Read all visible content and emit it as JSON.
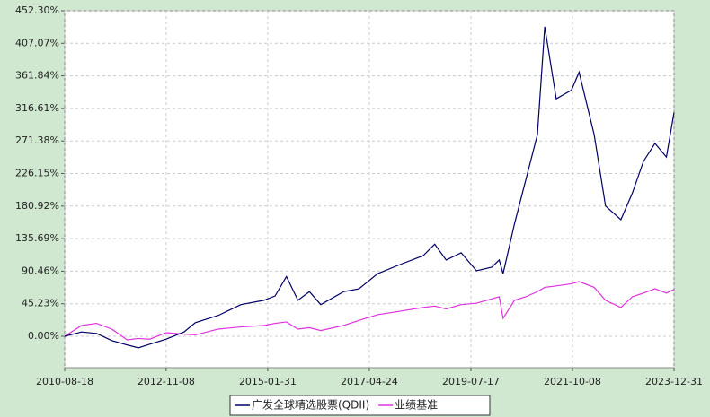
{
  "chart_data": {
    "type": "line",
    "x": [
      "2010-08-18",
      "2010-12-31",
      "2011-04-30",
      "2011-08-31",
      "2011-12-31",
      "2012-03-31",
      "2012-06-30",
      "2012-11-08",
      "2013-03-31",
      "2013-06-30",
      "2013-12-31",
      "2014-06-30",
      "2014-12-31",
      "2015-03-31",
      "2015-06-30",
      "2015-09-30",
      "2015-12-31",
      "2016-03-31",
      "2016-09-30",
      "2017-01-31",
      "2017-06-30",
      "2017-12-31",
      "2018-06-30",
      "2018-09-30",
      "2018-12-31",
      "2019-04-30",
      "2019-08-31",
      "2019-12-31",
      "2020-02-29",
      "2020-03-31",
      "2020-06-30",
      "2020-09-30",
      "2020-12-31",
      "2021-02-28",
      "2021-05-31",
      "2021-09-30",
      "2021-11-30",
      "2022-03-31",
      "2022-06-30",
      "2022-10-31",
      "2023-01-31",
      "2023-04-30",
      "2023-07-31",
      "2023-10-31",
      "2023-12-31"
    ],
    "series": [
      {
        "name": "广发全球精选股票(QDII)",
        "color": "#000066",
        "values": [
          0,
          6,
          4,
          -6,
          -12,
          -16,
          -11,
          -4,
          6,
          19,
          29,
          44,
          50,
          56,
          83,
          50,
          62,
          44,
          62,
          66,
          87,
          100,
          112,
          128,
          106,
          116,
          91,
          96,
          106,
          87,
          156,
          218,
          280,
          430,
          330,
          342,
          367,
          280,
          181,
          162,
          199,
          243,
          268,
          249,
          311
        ]
      },
      {
        "name": "业绩基准",
        "color": "#dd33dd",
        "values": [
          0,
          15,
          18,
          10,
          -5,
          -3,
          -4,
          5,
          3,
          2,
          10,
          13,
          15,
          18,
          20,
          10,
          12,
          8,
          15,
          22,
          30,
          35,
          40,
          42,
          38,
          44,
          46,
          52,
          55,
          25,
          50,
          55,
          62,
          68,
          70,
          73,
          76,
          68,
          50,
          40,
          55,
          60,
          66,
          60,
          65
        ]
      }
    ],
    "xlim": [
      "2010-08-18",
      "2023-12-31"
    ],
    "xticks": [
      "2010-08-18",
      "2012-11-08",
      "2015-01-31",
      "2017-04-24",
      "2019-07-17",
      "2021-10-08",
      "2023-12-31"
    ],
    "ylim": [
      -43.6,
      452.3
    ],
    "yticks": [
      {
        "value": 0,
        "label": "0.00%"
      },
      {
        "value": 45.23,
        "label": "45.23%"
      },
      {
        "value": 90.46,
        "label": "90.46%"
      },
      {
        "value": 135.69,
        "label": "135.69%"
      },
      {
        "value": 180.92,
        "label": "180.92%"
      },
      {
        "value": 226.15,
        "label": "226.15%"
      },
      {
        "value": 271.38,
        "label": "271.38%"
      },
      {
        "value": 316.61,
        "label": "316.61%"
      },
      {
        "value": 361.84,
        "label": "361.84%"
      },
      {
        "value": 407.07,
        "label": "407.07%"
      },
      {
        "value": 452.3,
        "label": "452.30%"
      }
    ],
    "grid": true
  }
}
